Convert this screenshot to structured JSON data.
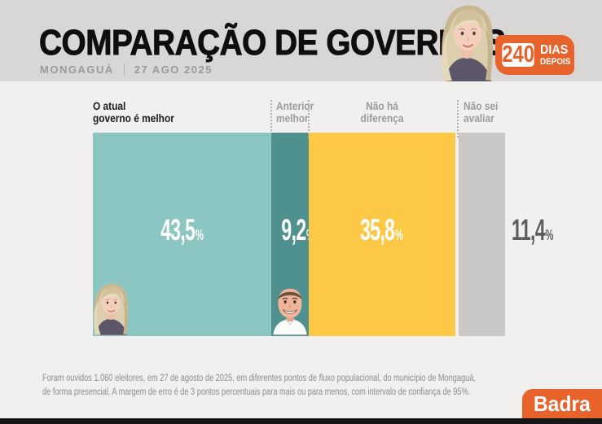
{
  "header": {
    "title": "COMPARAÇÃO DE GOVERNOS",
    "location": "MONGAGUÁ",
    "date": "27 AGO 2025",
    "badge": {
      "number": "240",
      "line1": "DIAS",
      "line2": "DEPOIS"
    }
  },
  "colors": {
    "brand_orange": "#E8622C",
    "header_bg": "#d8d7d6",
    "page_bg": "#f1f0ee",
    "bar_teal_light": "#8CC6C2",
    "bar_teal_dark": "#4E918E",
    "bar_yellow": "#FDC845",
    "bar_gray": "#C9C8C6"
  },
  "chart_data": {
    "type": "bar",
    "title": "COMPARAÇÃO DE GOVERNOS",
    "subtitle": "MONGAGUÁ | 27 AGO 2025",
    "unit": "%",
    "total": 100,
    "categories": [
      "O atual governo é melhor",
      "Anterior melhor",
      "Não há diferença",
      "Não sei avaliar"
    ],
    "values": [
      43.5,
      9.2,
      35.8,
      11.4
    ],
    "segments": [
      {
        "label_lines": [
          "O atual",
          "governo é melhor"
        ],
        "value": 43.5,
        "display": "43,5",
        "color": "#8CC6C2",
        "label_style": "dark",
        "align": "left",
        "value_inside": true,
        "avatar": "woman"
      },
      {
        "label_lines": [
          "Anterior",
          "melhor"
        ],
        "value": 9.2,
        "display": "9,2",
        "color": "#4E918E",
        "label_style": "gray",
        "align": "left",
        "value_inside": true,
        "avatar": "man"
      },
      {
        "label_lines": [
          "Não há",
          "diferença"
        ],
        "value": 35.8,
        "display": "35,8",
        "color": "#FDC845",
        "label_style": "gray",
        "align": "center",
        "value_inside": true,
        "avatar": null
      },
      {
        "label_lines": [
          "Não sei",
          "avaliar"
        ],
        "value": 11.4,
        "display": "11,4",
        "color": "#C9C8C6",
        "label_style": "gray",
        "align": "left",
        "value_inside": false,
        "avatar": null
      }
    ]
  },
  "footer": {
    "line1": "Foram ouvidos 1.060 eleitores, em 27 de agosto de 2025, em diferentes pontos de fluxo populacional, do município de Mongaguá,",
    "line2": "de forma presencial, A margem de erro é de 3 pontos percentuais para mais ou para menos, com intervalo de confiança de 95%.",
    "logo": "Badra"
  }
}
